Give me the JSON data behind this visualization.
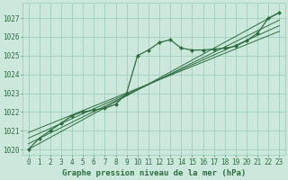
{
  "xlabel": "Graphe pression niveau de la mer (hPa)",
  "ylim": [
    1019.7,
    1027.8
  ],
  "xlim": [
    -0.5,
    23.5
  ],
  "yticks": [
    1020,
    1021,
    1022,
    1023,
    1024,
    1025,
    1026,
    1027
  ],
  "xticks": [
    0,
    1,
    2,
    3,
    4,
    5,
    6,
    7,
    8,
    9,
    10,
    11,
    12,
    13,
    14,
    15,
    16,
    17,
    18,
    19,
    20,
    21,
    22,
    23
  ],
  "bg_color": "#cce8dc",
  "grid_color": "#9fcfbb",
  "line_color": "#2d6e3e",
  "marker_color": "#2d6e3e",
  "main_x": [
    0,
    1,
    2,
    3,
    4,
    5,
    6,
    7,
    8,
    9,
    10,
    11,
    12,
    13,
    14,
    15,
    16,
    17,
    18,
    19,
    20,
    21,
    22,
    23
  ],
  "main_y": [
    1020.0,
    1020.6,
    1021.0,
    1021.4,
    1021.8,
    1022.0,
    1022.1,
    1022.2,
    1022.4,
    1023.0,
    1025.0,
    1025.3,
    1025.7,
    1025.85,
    1025.4,
    1025.3,
    1025.3,
    1025.35,
    1025.4,
    1025.5,
    1025.8,
    1026.2,
    1027.0,
    1027.3
  ],
  "trend_lines": [
    [
      1020.0,
      1027.3
    ],
    [
      1020.3,
      1026.9
    ],
    [
      1020.6,
      1026.6
    ],
    [
      1020.9,
      1026.3
    ]
  ],
  "font_color": "#2d6e3e",
  "font_size_label": 6.5,
  "font_size_tick": 5.5
}
